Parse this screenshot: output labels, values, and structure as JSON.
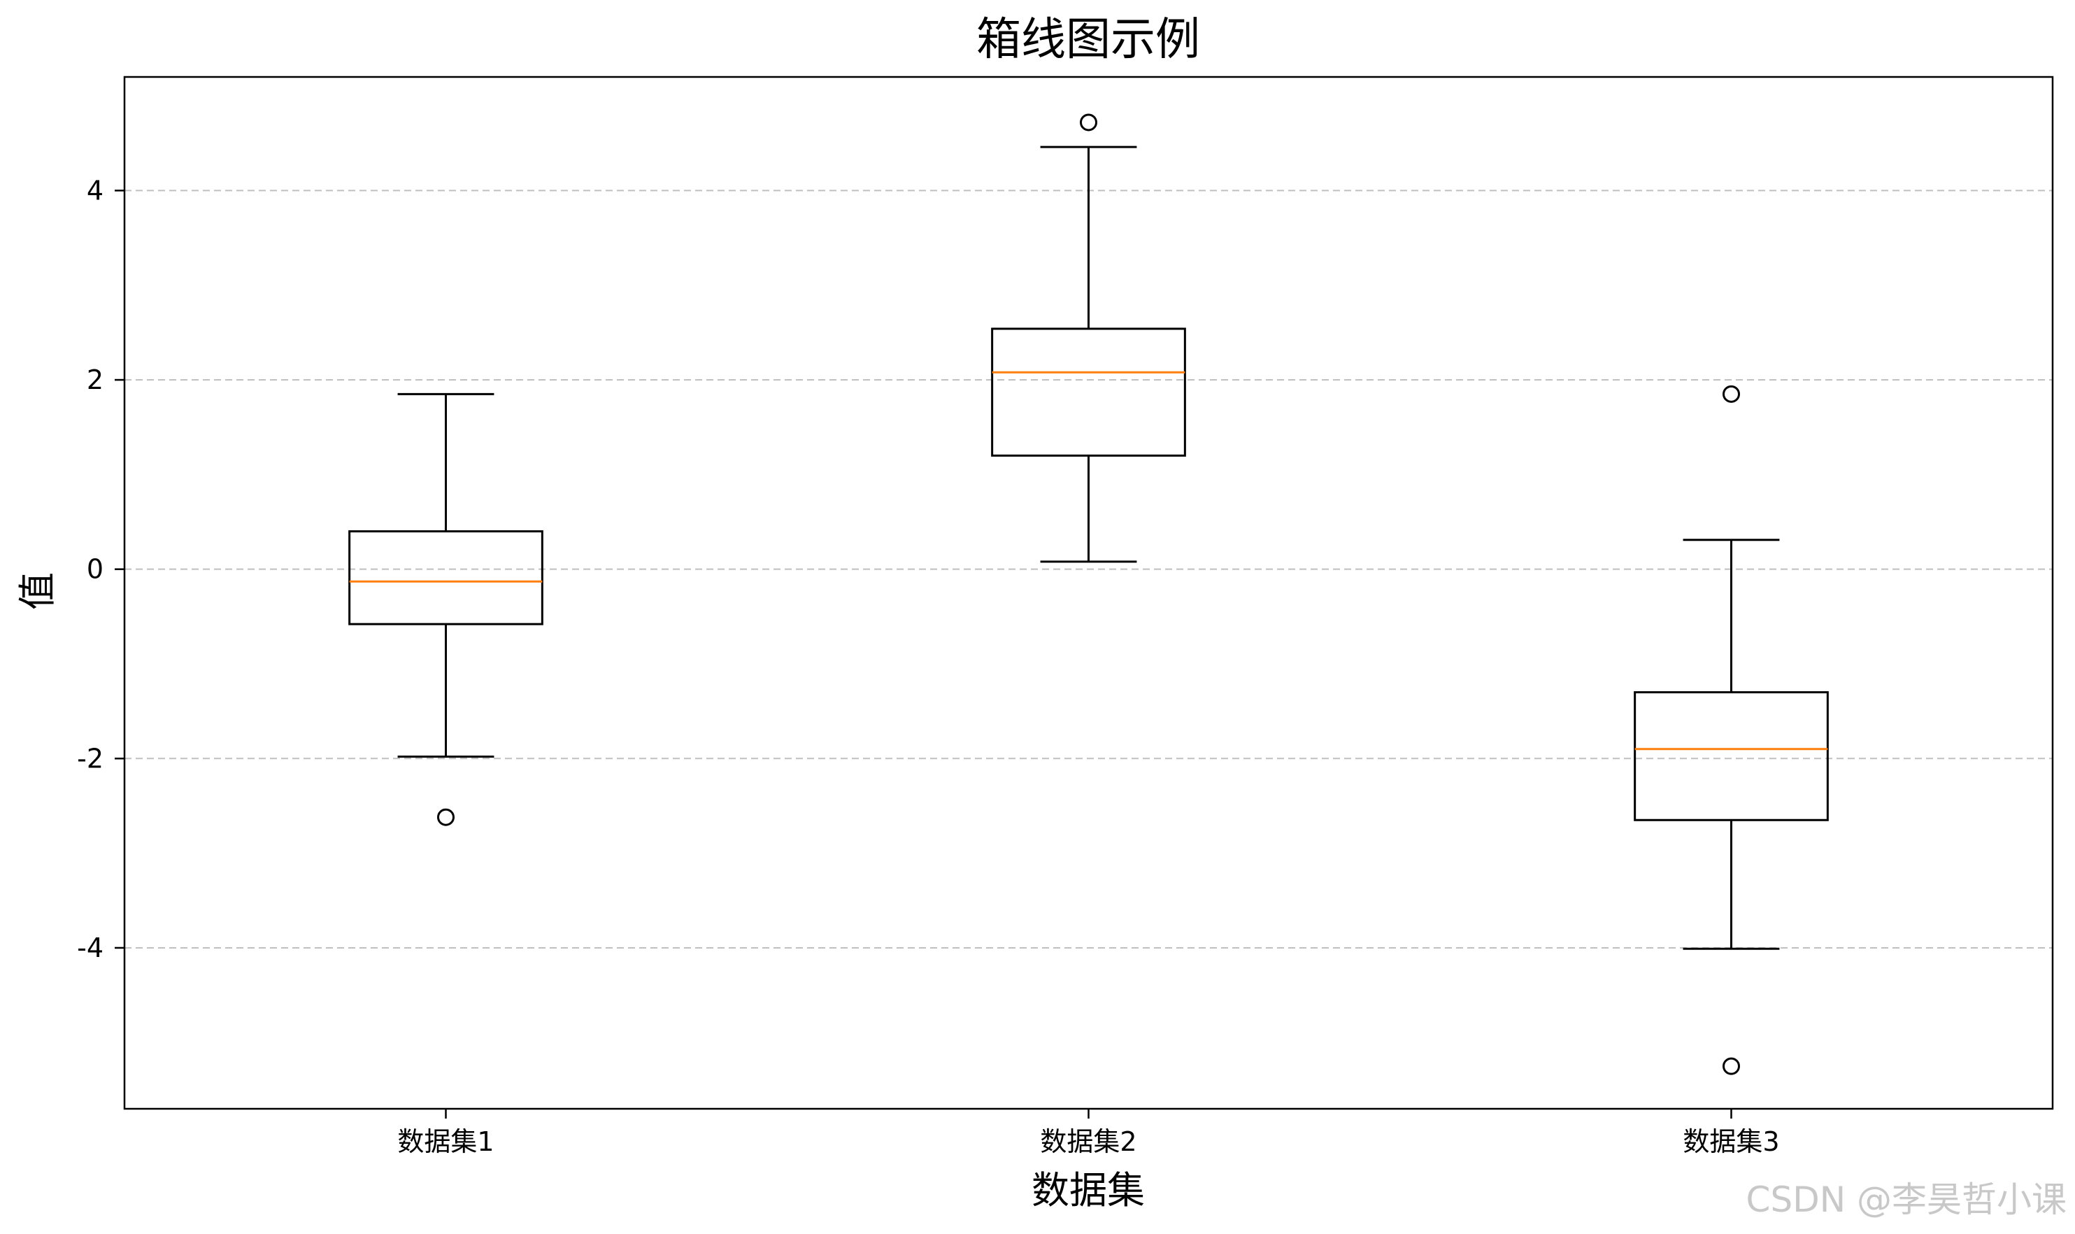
{
  "chart_data": {
    "type": "box",
    "title": "箱线图示例",
    "xlabel": "数据集",
    "ylabel": "值",
    "ylim": [
      -5.7,
      5.2
    ],
    "yticks": [
      4,
      2,
      0,
      -2,
      -4
    ],
    "ytick_labels": [
      "4",
      "2",
      "0",
      "-2",
      "-4"
    ],
    "grid": "y-dashed",
    "colors": {
      "box": "#000000",
      "median": "#ff7f0e",
      "grid": "#c0c0c0"
    },
    "series": [
      {
        "category": "数据集1",
        "whisker_low": -1.98,
        "q1": -0.58,
        "median": -0.13,
        "q3": 0.4,
        "whisker_high": 1.85,
        "outliers": [
          -2.62
        ]
      },
      {
        "category": "数据集2",
        "whisker_low": 0.08,
        "q1": 1.2,
        "median": 2.08,
        "q3": 2.54,
        "whisker_high": 4.46,
        "outliers": [
          4.72
        ]
      },
      {
        "category": "数据集3",
        "whisker_low": -4.01,
        "q1": -2.65,
        "median": -1.9,
        "q3": -1.3,
        "whisker_high": 0.31,
        "outliers": [
          1.85,
          -5.25
        ]
      }
    ]
  },
  "watermark": "CSDN @李昊哲小课"
}
